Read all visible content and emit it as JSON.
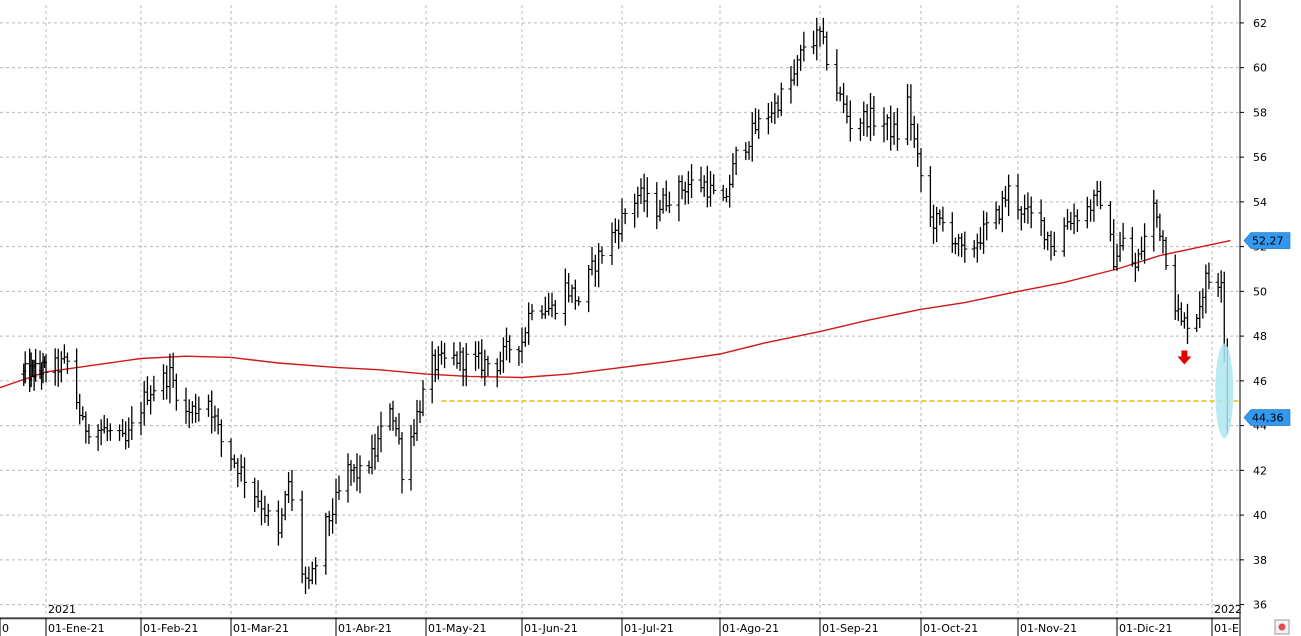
{
  "chart_data": {
    "type": "ohlc",
    "title": "",
    "xlabel": "",
    "ylabel": "",
    "ylim": [
      35.4,
      62.8
    ],
    "y_ticks": [
      36,
      38,
      40,
      42,
      44,
      46,
      48,
      50,
      52,
      54,
      56,
      58,
      60,
      62
    ],
    "x_ticks": [
      {
        "label": "0",
        "date": "2020-12-01"
      },
      {
        "label": "01-Ene-21",
        "date": "2021-01-01"
      },
      {
        "label": "01-Feb-21",
        "date": "2021-02-01"
      },
      {
        "label": "01-Mar-21",
        "date": "2021-03-01"
      },
      {
        "label": "01-Abr-21",
        "date": "2021-04-01"
      },
      {
        "label": "01-May-21",
        "date": "2021-05-01"
      },
      {
        "label": "01-Jun-21",
        "date": "2021-06-01"
      },
      {
        "label": "01-Jul-21",
        "date": "2021-07-01"
      },
      {
        "label": "01-Ago-21",
        "date": "2021-08-01"
      },
      {
        "label": "01-Sep-21",
        "date": "2021-09-01"
      },
      {
        "label": "01-Oct-21",
        "date": "2021-10-01"
      },
      {
        "label": "01-Nov-21",
        "date": "2021-11-01"
      },
      {
        "label": "01-Dic-21",
        "date": "2021-12-01"
      },
      {
        "label": "01-E",
        "date": "2022-01-01"
      }
    ],
    "year_labels": [
      {
        "label": "2021",
        "date": "2021-01-01"
      },
      {
        "label": "2022",
        "date": "2022-01-01"
      }
    ],
    "x_range": [
      "2020-12-01",
      "2022-01-07"
    ],
    "grid": true,
    "series": [
      {
        "name": "",
        "kind": "ohlc",
        "color": "#000000",
        "anchors": [
          [
            "2020-12-17",
            46.3
          ],
          [
            "2021-01-04",
            46.6
          ],
          [
            "2021-01-08",
            46.8
          ],
          [
            "2021-01-13",
            44.0
          ],
          [
            "2021-01-20",
            43.8
          ],
          [
            "2021-01-27",
            43.2
          ],
          [
            "2021-02-03",
            45.5
          ],
          [
            "2021-02-10",
            46.3
          ],
          [
            "2021-02-15",
            44.5
          ],
          [
            "2021-02-22",
            45.2
          ],
          [
            "2021-02-26",
            43.3
          ],
          [
            "2021-03-03",
            42.2
          ],
          [
            "2021-03-10",
            40.5
          ],
          [
            "2021-03-15",
            39.0
          ],
          [
            "2021-03-18",
            41.5
          ],
          [
            "2021-03-22",
            37.5
          ],
          [
            "2021-03-24",
            36.7
          ],
          [
            "2021-03-29",
            39.5
          ],
          [
            "2021-04-05",
            42.0
          ],
          [
            "2021-04-09",
            41.8
          ],
          [
            "2021-04-14",
            42.8
          ],
          [
            "2021-04-19",
            45.0
          ],
          [
            "2021-04-22",
            43.3
          ],
          [
            "2021-04-23",
            42.0
          ],
          [
            "2021-04-28",
            44.5
          ],
          [
            "2021-05-03",
            46.7
          ],
          [
            "2021-05-11",
            47.0
          ],
          [
            "2021-05-18",
            46.8
          ],
          [
            "2021-05-24",
            46.8
          ],
          [
            "2021-05-28",
            47.5
          ],
          [
            "2021-06-01",
            47.8
          ],
          [
            "2021-06-04",
            49.5
          ],
          [
            "2021-06-10",
            49.2
          ],
          [
            "2021-06-14",
            50.2
          ],
          [
            "2021-06-18",
            49.6
          ],
          [
            "2021-06-23",
            51.3
          ],
          [
            "2021-06-28",
            52.5
          ],
          [
            "2021-07-02",
            53.5
          ],
          [
            "2021-07-06",
            54.3
          ],
          [
            "2021-07-12",
            53.7
          ],
          [
            "2021-07-16",
            54.3
          ],
          [
            "2021-07-22",
            54.8
          ],
          [
            "2021-07-27",
            54.8
          ],
          [
            "2021-08-02",
            53.8
          ],
          [
            "2021-08-06",
            56.0
          ],
          [
            "2021-08-12",
            57.3
          ],
          [
            "2021-08-18",
            58.3
          ],
          [
            "2021-08-24",
            59.6
          ],
          [
            "2021-08-27",
            61.0
          ],
          [
            "2021-09-01",
            61.4
          ],
          [
            "2021-09-06",
            59.0
          ],
          [
            "2021-09-10",
            57.5
          ],
          [
            "2021-09-15",
            57.8
          ],
          [
            "2021-09-20",
            57.5
          ],
          [
            "2021-09-24",
            57.0
          ],
          [
            "2021-09-27",
            58.5
          ],
          [
            "2021-09-30",
            55.8
          ],
          [
            "2021-10-04",
            53.2
          ],
          [
            "2021-10-08",
            53.0
          ],
          [
            "2021-10-11",
            52.5
          ],
          [
            "2021-10-15",
            51.5
          ],
          [
            "2021-10-20",
            52.5
          ],
          [
            "2021-10-25",
            53.3
          ],
          [
            "2021-10-29",
            54.5
          ],
          [
            "2021-11-03",
            53.5
          ],
          [
            "2021-11-08",
            53.0
          ],
          [
            "2021-11-12",
            52.0
          ],
          [
            "2021-11-16",
            53.2
          ],
          [
            "2021-11-22",
            53.7
          ],
          [
            "2021-11-26",
            54.2
          ],
          [
            "2021-11-30",
            51.5
          ],
          [
            "2021-12-03",
            52.2
          ],
          [
            "2021-12-07",
            51.0
          ],
          [
            "2021-12-10",
            52.4
          ],
          [
            "2021-12-13",
            53.8
          ],
          [
            "2021-12-16",
            52.3
          ],
          [
            "2021-12-20",
            49.5
          ],
          [
            "2021-12-22",
            48.5
          ],
          [
            "2021-12-27",
            49.0
          ],
          [
            "2021-12-30",
            50.5
          ],
          [
            "2022-01-03",
            50.5
          ],
          [
            "2022-01-04",
            50.8
          ],
          [
            "2022-01-05",
            47.8
          ],
          [
            "2022-01-06",
            44.36
          ]
        ]
      },
      {
        "name": "",
        "kind": "line",
        "color": "#d01818",
        "points": [
          [
            "2020-12-01",
            45.7
          ],
          [
            "2021-01-01",
            46.4
          ],
          [
            "2021-02-01",
            47.0
          ],
          [
            "2021-02-15",
            47.1
          ],
          [
            "2021-03-01",
            47.05
          ],
          [
            "2021-03-15",
            46.8
          ],
          [
            "2021-04-01",
            46.6
          ],
          [
            "2021-04-15",
            46.5
          ],
          [
            "2021-05-01",
            46.3
          ],
          [
            "2021-05-15",
            46.2
          ],
          [
            "2021-06-01",
            46.15
          ],
          [
            "2021-06-15",
            46.3
          ],
          [
            "2021-07-01",
            46.6
          ],
          [
            "2021-07-15",
            46.85
          ],
          [
            "2021-08-01",
            47.2
          ],
          [
            "2021-08-15",
            47.7
          ],
          [
            "2021-09-01",
            48.2
          ],
          [
            "2021-09-15",
            48.7
          ],
          [
            "2021-10-01",
            49.2
          ],
          [
            "2021-10-15",
            49.5
          ],
          [
            "2021-11-01",
            50.0
          ],
          [
            "2021-11-15",
            50.4
          ],
          [
            "2021-12-01",
            51.0
          ],
          [
            "2021-12-15",
            51.6
          ],
          [
            "2022-01-01",
            52.1
          ],
          [
            "2022-01-07",
            52.27
          ]
        ]
      }
    ],
    "support_line": {
      "value": 45.1,
      "from": "2021-05-06",
      "to": "2022-01-07",
      "color": "#e8c000"
    },
    "badges": [
      {
        "label": "52,27",
        "value": 52.27,
        "color": "#3399ee"
      },
      {
        "label": "44,36",
        "value": 44.36,
        "color": "#3399ee"
      }
    ],
    "arrow": {
      "date": "2021-12-23",
      "value": 47.0,
      "color": "#e00000"
    },
    "highlight": {
      "date": "2022-01-05",
      "from": 43.7,
      "to": 47.4,
      "color": "#aee8f0"
    }
  }
}
